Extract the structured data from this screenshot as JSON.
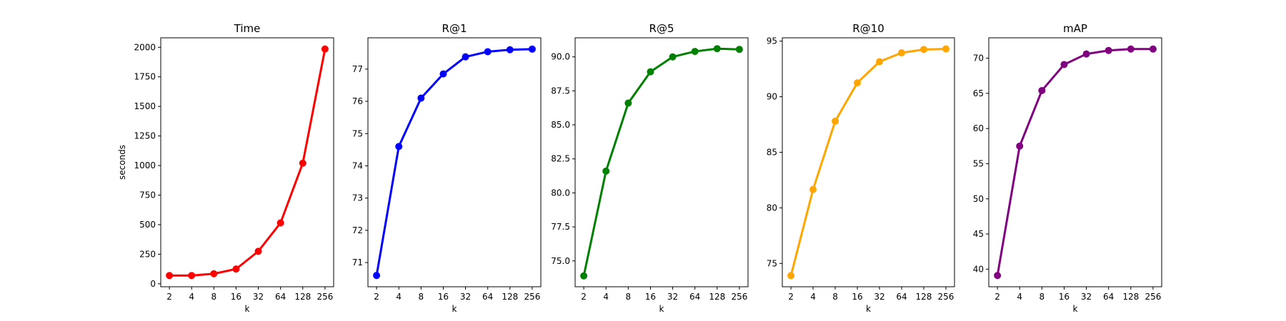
{
  "chart_data": [
    {
      "type": "line",
      "title": "Time",
      "xlabel": "k",
      "ylabel": "seconds",
      "x": [
        "2",
        "4",
        "8",
        "16",
        "32",
        "64",
        "128",
        "256"
      ],
      "y": [
        70,
        70,
        85,
        125,
        275,
        515,
        1020,
        1985
      ],
      "ylim": [
        -25,
        2080
      ],
      "yticks": [
        "0",
        "250",
        "500",
        "750",
        "1000",
        "1250",
        "1500",
        "1750",
        "2000"
      ],
      "color": "#ff0000",
      "grid": false
    },
    {
      "type": "line",
      "title": "R@1",
      "xlabel": "k",
      "ylabel": "",
      "x": [
        "2",
        "4",
        "8",
        "16",
        "32",
        "64",
        "128",
        "256"
      ],
      "y": [
        70.6,
        74.6,
        76.1,
        76.85,
        77.38,
        77.54,
        77.6,
        77.62
      ],
      "ylim": [
        70.25,
        77.97
      ],
      "yticks": [
        "71",
        "72",
        "73",
        "74",
        "75",
        "76",
        "77"
      ],
      "color": "#0000ff",
      "grid": false
    },
    {
      "type": "line",
      "title": "R@5",
      "xlabel": "k",
      "ylabel": "",
      "x": [
        "2",
        "4",
        "8",
        "16",
        "32",
        "64",
        "128",
        "256"
      ],
      "y": [
        73.9,
        81.6,
        86.6,
        88.9,
        90.0,
        90.4,
        90.6,
        90.55
      ],
      "ylim": [
        73.1,
        91.4
      ],
      "yticks": [
        "75.0",
        "77.5",
        "80.0",
        "82.5",
        "85.0",
        "87.5",
        "90.0"
      ],
      "color": "#008000",
      "grid": false
    },
    {
      "type": "line",
      "title": "R@10",
      "xlabel": "k",
      "ylabel": "",
      "x": [
        "2",
        "4",
        "8",
        "16",
        "32",
        "64",
        "128",
        "256"
      ],
      "y": [
        73.9,
        81.65,
        87.8,
        91.25,
        93.15,
        93.95,
        94.25,
        94.3
      ],
      "ylim": [
        72.9,
        95.3
      ],
      "yticks": [
        "75",
        "80",
        "85",
        "90",
        "95"
      ],
      "color": "#ffa500",
      "grid": false
    },
    {
      "type": "line",
      "title": "mAP",
      "xlabel": "k",
      "ylabel": "",
      "x": [
        "2",
        "4",
        "8",
        "16",
        "32",
        "64",
        "128",
        "256"
      ],
      "y": [
        39.1,
        57.5,
        65.4,
        69.1,
        70.6,
        71.1,
        71.3,
        71.3
      ],
      "ylim": [
        37.5,
        72.9
      ],
      "yticks": [
        "40",
        "45",
        "50",
        "55",
        "60",
        "65",
        "70"
      ],
      "color": "#800080",
      "grid": false
    }
  ]
}
